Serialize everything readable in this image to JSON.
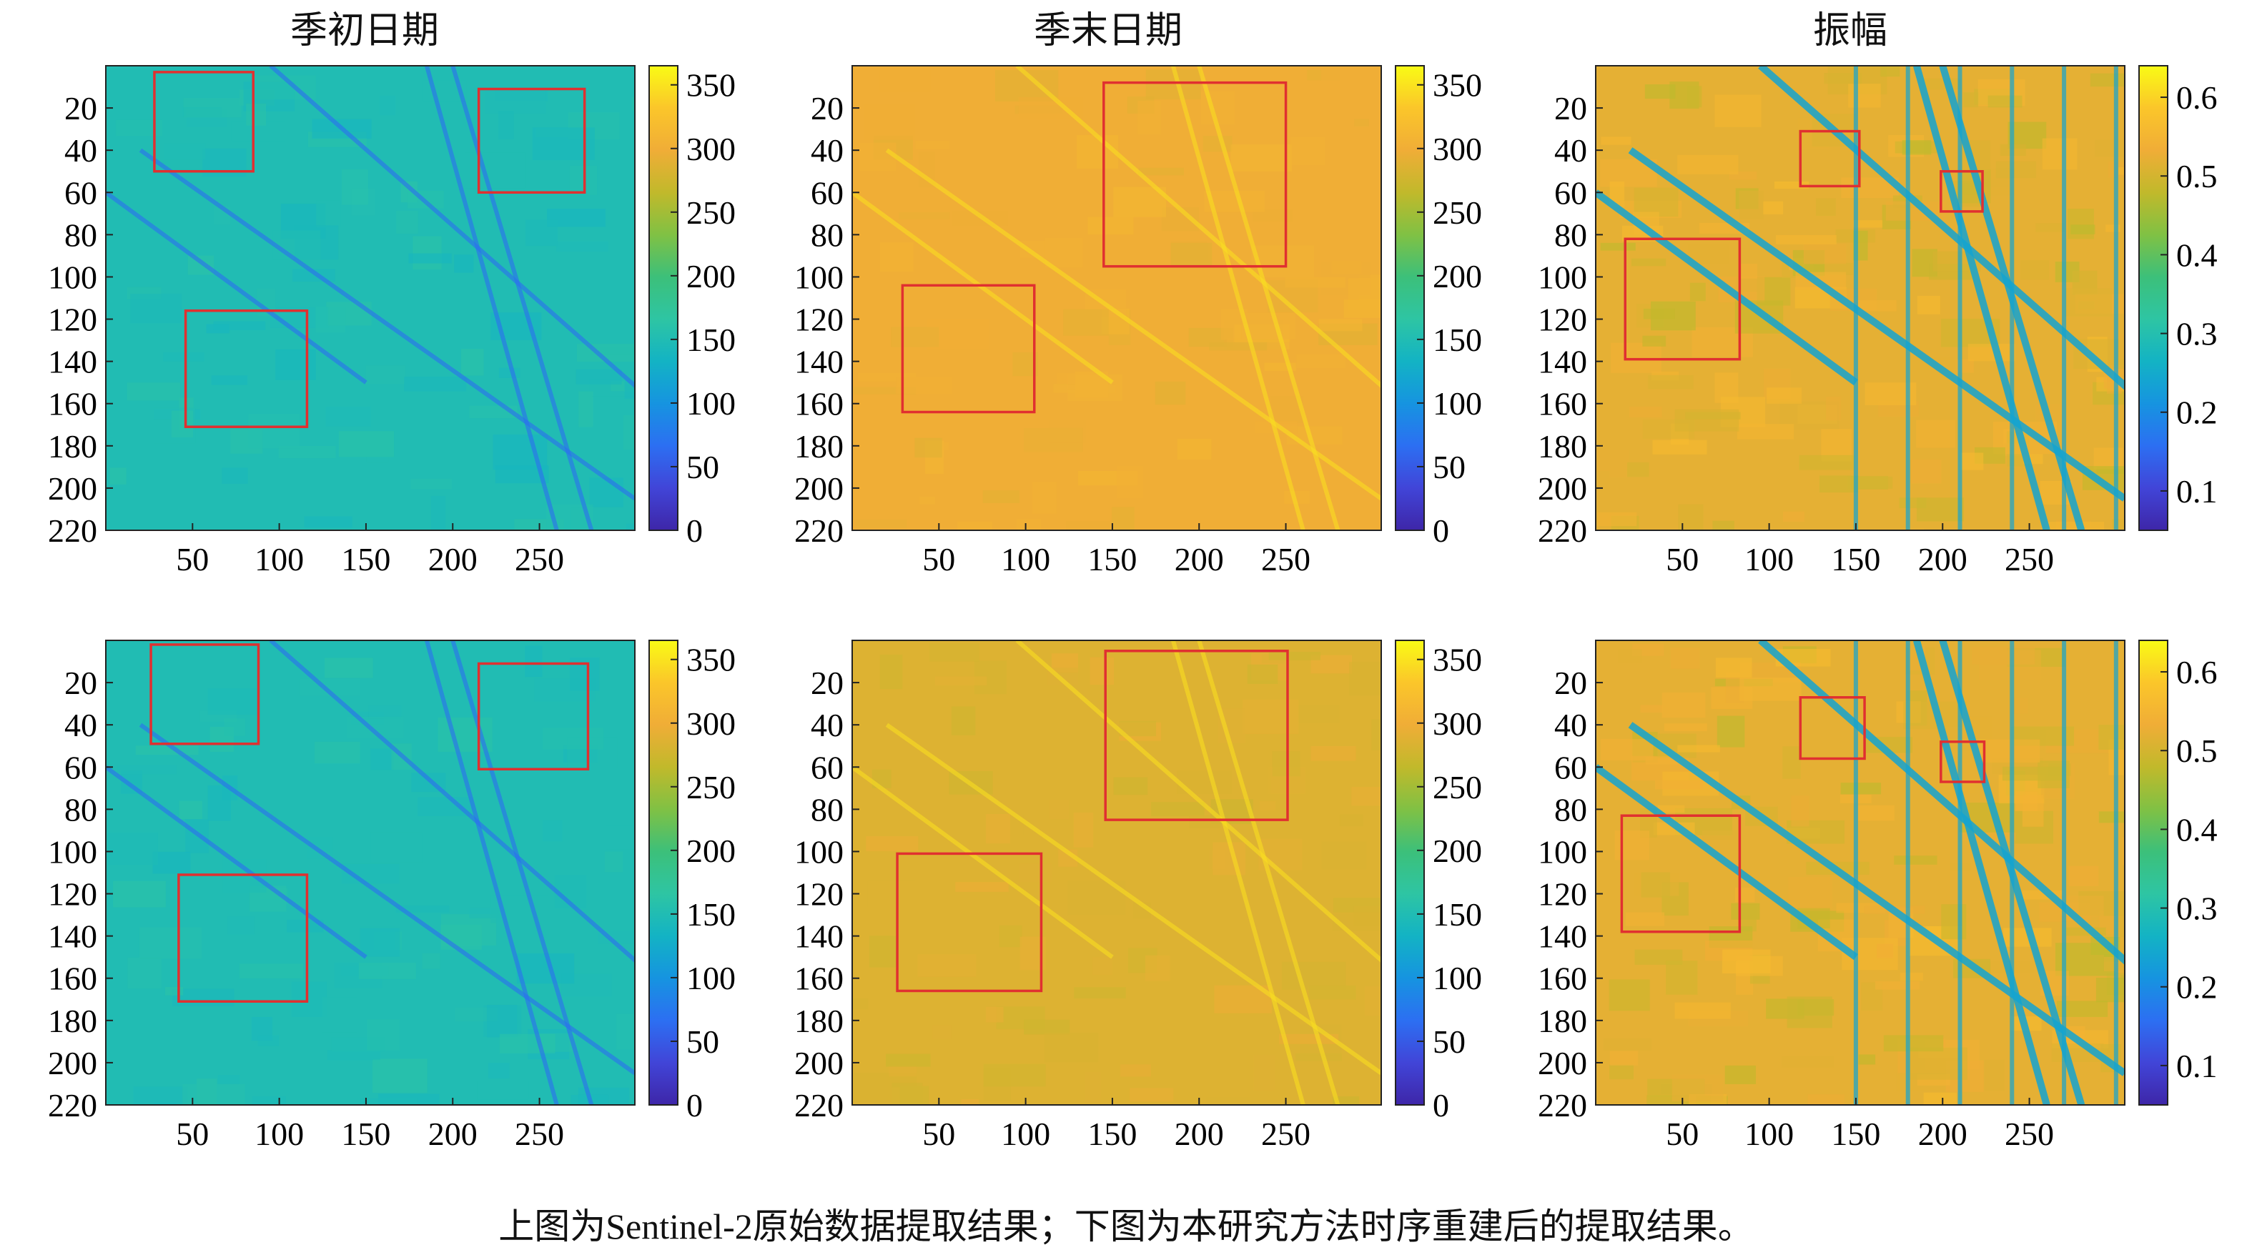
{
  "columns": [
    "季初日期",
    "季末日期",
    "振幅"
  ],
  "caption": "上图为Sentinel-2原始数据提取结果；下图为本研究方法时序重建后的提取结果。",
  "colors": {
    "box": "#e03030",
    "colormap": [
      "#3e26a8",
      "#4145d8",
      "#2c6ff2",
      "#1694e0",
      "#13b3c4",
      "#2ec5a3",
      "#3cc07a",
      "#80c144",
      "#c1b92b",
      "#f0ad37",
      "#fbc62a",
      "#f9fb15"
    ]
  },
  "chart_data": [
    {
      "type": "heatmap",
      "row": "top",
      "title": "季初日期",
      "x_ticks": [
        50,
        100,
        150,
        200,
        250
      ],
      "y_ticks": [
        20,
        40,
        60,
        80,
        100,
        120,
        140,
        160,
        180,
        200,
        220
      ],
      "x_range": [
        0,
        305
      ],
      "y_range": [
        0,
        220
      ],
      "colorbar": {
        "ticks": [
          "0",
          "50",
          "100",
          "150",
          "200",
          "250",
          "300",
          "350"
        ],
        "range": [
          0,
          365
        ]
      },
      "background_value": 150,
      "boxes": [
        [
          28,
          3,
          85,
          50
        ],
        [
          215,
          11,
          276,
          60
        ],
        [
          46,
          116,
          116,
          171
        ]
      ]
    },
    {
      "type": "heatmap",
      "row": "top",
      "title": "季末日期",
      "x_ticks": [
        50,
        100,
        150,
        200,
        250
      ],
      "y_ticks": [
        20,
        40,
        60,
        80,
        100,
        120,
        140,
        160,
        180,
        200,
        220
      ],
      "x_range": [
        0,
        305
      ],
      "y_range": [
        0,
        220
      ],
      "colorbar": {
        "ticks": [
          "0",
          "50",
          "100",
          "150",
          "200",
          "250",
          "300",
          "350"
        ],
        "range": [
          0,
          365
        ]
      },
      "background_value": 300,
      "boxes": [
        [
          145,
          8,
          250,
          95
        ],
        [
          29,
          104,
          105,
          164
        ]
      ]
    },
    {
      "type": "heatmap",
      "row": "top",
      "title": "振幅",
      "x_ticks": [
        50,
        100,
        150,
        200,
        250
      ],
      "y_ticks": [
        20,
        40,
        60,
        80,
        100,
        120,
        140,
        160,
        180,
        200,
        220
      ],
      "x_range": [
        0,
        305
      ],
      "y_range": [
        0,
        220
      ],
      "colorbar": {
        "ticks": [
          "0.1",
          "0.2",
          "0.3",
          "0.4",
          "0.5",
          "0.6"
        ],
        "range": [
          0.05,
          0.64
        ]
      },
      "background_value": 0.52,
      "boxes": [
        [
          118,
          31,
          152,
          57
        ],
        [
          199,
          50,
          223,
          69
        ],
        [
          17,
          82,
          83,
          139
        ]
      ]
    },
    {
      "type": "heatmap",
      "row": "bottom",
      "title": "季初日期",
      "x_ticks": [
        50,
        100,
        150,
        200,
        250
      ],
      "y_ticks": [
        20,
        40,
        60,
        80,
        100,
        120,
        140,
        160,
        180,
        200,
        220
      ],
      "x_range": [
        0,
        305
      ],
      "y_range": [
        0,
        220
      ],
      "colorbar": {
        "ticks": [
          "0",
          "50",
          "100",
          "150",
          "200",
          "250",
          "300",
          "350"
        ],
        "range": [
          0,
          365
        ]
      },
      "background_value": 150,
      "boxes": [
        [
          26,
          2,
          88,
          49
        ],
        [
          215,
          11,
          278,
          61
        ],
        [
          42,
          111,
          116,
          171
        ]
      ]
    },
    {
      "type": "heatmap",
      "row": "bottom",
      "title": "季末日期",
      "x_ticks": [
        50,
        100,
        150,
        200,
        250
      ],
      "y_ticks": [
        20,
        40,
        60,
        80,
        100,
        120,
        140,
        160,
        180,
        200,
        220
      ],
      "x_range": [
        0,
        305
      ],
      "y_range": [
        0,
        220
      ],
      "colorbar": {
        "ticks": [
          "0",
          "50",
          "100",
          "150",
          "200",
          "250",
          "300",
          "350"
        ],
        "range": [
          0,
          365
        ]
      },
      "background_value": 285,
      "boxes": [
        [
          146,
          5,
          251,
          85
        ],
        [
          26,
          101,
          109,
          166
        ]
      ]
    },
    {
      "type": "heatmap",
      "row": "bottom",
      "title": "振幅",
      "x_ticks": [
        50,
        100,
        150,
        200,
        250
      ],
      "y_ticks": [
        20,
        40,
        60,
        80,
        100,
        120,
        140,
        160,
        180,
        200,
        220
      ],
      "x_range": [
        0,
        305
      ],
      "y_range": [
        0,
        220
      ],
      "colorbar": {
        "ticks": [
          "0.1",
          "0.2",
          "0.3",
          "0.4",
          "0.5",
          "0.6"
        ],
        "range": [
          0.05,
          0.64
        ]
      },
      "background_value": 0.52,
      "boxes": [
        [
          118,
          27,
          155,
          56
        ],
        [
          199,
          48,
          224,
          67
        ],
        [
          15,
          83,
          83,
          138
        ]
      ]
    }
  ]
}
